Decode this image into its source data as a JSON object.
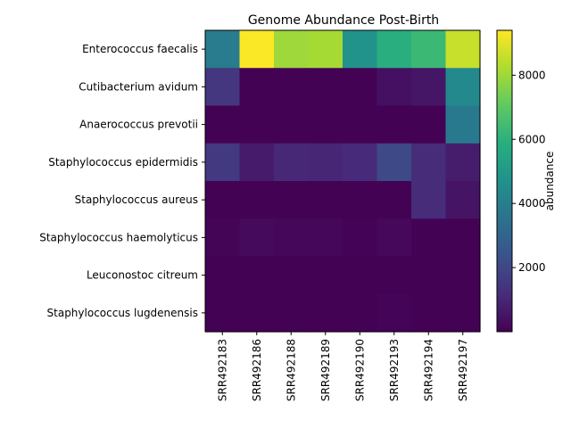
{
  "chart_data": {
    "type": "heatmap",
    "title": "Genome Abundance Post-Birth",
    "colorbar_label": "abundance",
    "colormap": "viridis",
    "vmin": 0,
    "vmax": 9400,
    "colorbar_ticks": [
      2000,
      4000,
      6000,
      8000
    ],
    "rows": [
      "Enterococcus faecalis",
      "Cutibacterium avidum",
      "Anaerococcus prevotii",
      "Staphylococcus epidermidis",
      "Staphylococcus aureus",
      "Staphylococcus haemolyticus",
      "Leuconostoc citreum",
      "Staphylococcus lugdenensis"
    ],
    "columns": [
      "SRR492183",
      "SRR492186",
      "SRR492188",
      "SRR492189",
      "SRR492190",
      "SRR492193",
      "SRR492194",
      "SRR492197"
    ],
    "values": [
      [
        3900,
        9350,
        8000,
        8100,
        4800,
        5900,
        6300,
        8600
      ],
      [
        1450,
        30,
        30,
        30,
        30,
        400,
        550,
        4400
      ],
      [
        30,
        30,
        30,
        30,
        30,
        30,
        30,
        3800
      ],
      [
        1550,
        700,
        1050,
        1000,
        1100,
        2050,
        1150,
        750
      ],
      [
        30,
        30,
        30,
        30,
        30,
        30,
        1150,
        500
      ],
      [
        100,
        250,
        150,
        150,
        50,
        200,
        30,
        30
      ],
      [
        30,
        30,
        30,
        30,
        30,
        30,
        30,
        30
      ],
      [
        30,
        30,
        30,
        30,
        30,
        80,
        30,
        30
      ]
    ]
  }
}
